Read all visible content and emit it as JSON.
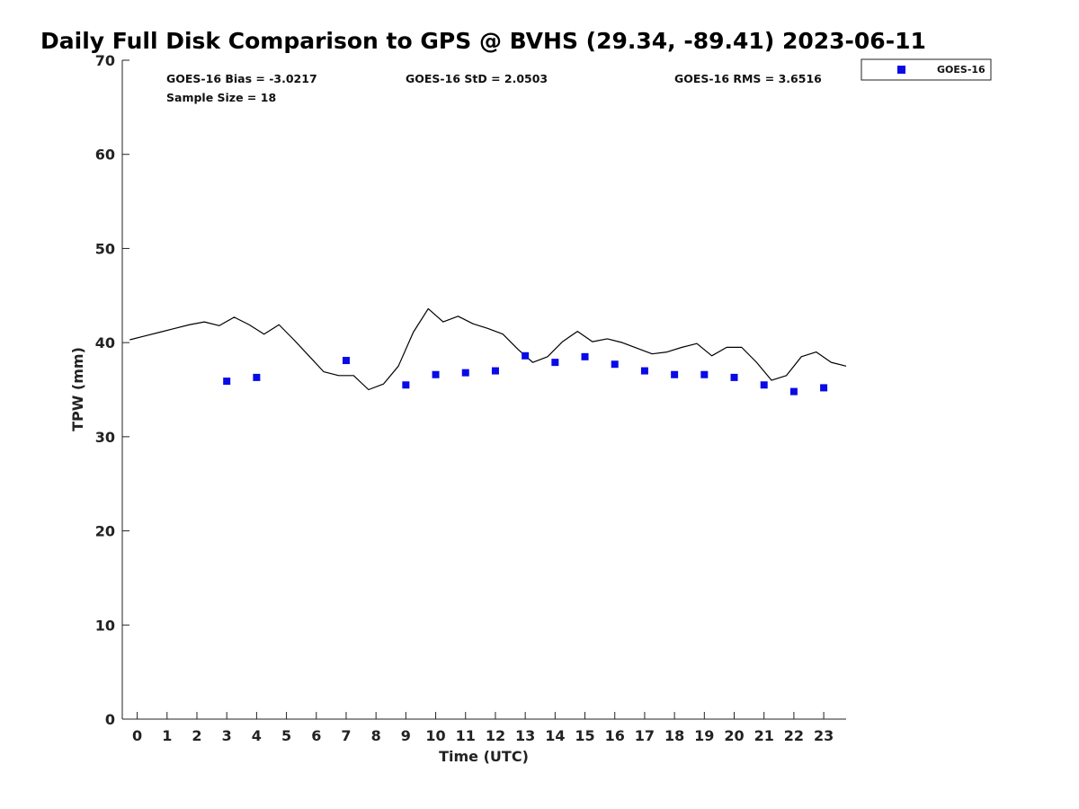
{
  "chart_data": {
    "type": "scatter",
    "title": "Daily Full Disk Comparison to GPS @ BVHS (29.34, -89.41) 2023-06-11",
    "xlabel": "Time (UTC)",
    "ylabel": "TPW (mm)",
    "xlim": [
      -0.5,
      23.75
    ],
    "ylim": [
      0,
      70
    ],
    "x_ticks": [
      0,
      1,
      2,
      3,
      4,
      5,
      6,
      7,
      8,
      9,
      10,
      11,
      12,
      13,
      14,
      15,
      16,
      17,
      18,
      19,
      20,
      21,
      22,
      23
    ],
    "y_ticks": [
      0,
      10,
      20,
      30,
      40,
      50,
      60,
      70
    ],
    "grid": false,
    "legend_position": "top-right",
    "legend_entries": [
      "GOES-16"
    ],
    "stats": {
      "bias": "GOES-16 Bias = -3.0217",
      "std": "GOES-16 StD = 2.0503",
      "rms": "GOES-16 RMS = 3.6516",
      "sample_size": "Sample Size = 18"
    },
    "series": [
      {
        "name": "GOES-16",
        "kind": "scatter",
        "color": "#0a0ae6",
        "x": [
          3,
          4,
          7,
          9,
          10,
          11,
          12,
          13,
          14,
          15,
          16,
          17,
          18,
          19,
          20,
          21,
          22,
          23
        ],
        "y": [
          35.9,
          36.3,
          38.1,
          35.5,
          36.6,
          36.8,
          37.0,
          38.6,
          37.9,
          38.5,
          37.7,
          37.0,
          36.6,
          36.6,
          36.3,
          35.5,
          34.8,
          35.2
        ]
      },
      {
        "kind": "line",
        "color": "#000000",
        "x": [
          -0.25,
          0.25,
          0.75,
          1.25,
          1.75,
          2.25,
          2.75,
          3.25,
          3.75,
          4.25,
          4.75,
          5.25,
          5.75,
          6.25,
          6.75,
          7.25,
          7.75,
          8.25,
          8.75,
          9.25,
          9.75,
          10.25,
          10.75,
          11.25,
          11.75,
          12.25,
          12.75,
          13.25,
          13.75,
          14.25,
          14.75,
          15.25,
          15.75,
          16.25,
          16.75,
          17.25,
          17.75,
          18.25,
          18.75,
          19.25,
          19.75,
          20.25,
          20.75,
          21.25,
          21.75,
          22.25,
          22.75,
          23.25,
          23.75
        ],
        "y": [
          40.3,
          40.7,
          41.1,
          41.5,
          41.9,
          42.2,
          41.8,
          42.7,
          41.9,
          40.9,
          41.9,
          40.3,
          38.6,
          36.9,
          36.5,
          36.5,
          35.0,
          35.6,
          37.5,
          41.1,
          43.6,
          42.2,
          42.8,
          42.0,
          41.5,
          40.9,
          39.3,
          37.9,
          38.5,
          40.1,
          41.2,
          40.1,
          40.4,
          40.0,
          39.4,
          38.8,
          39.0,
          39.5,
          39.9,
          38.6,
          39.5,
          39.5,
          37.9,
          36.0,
          36.5,
          38.5,
          39.0,
          37.9,
          37.5
        ]
      }
    ]
  }
}
